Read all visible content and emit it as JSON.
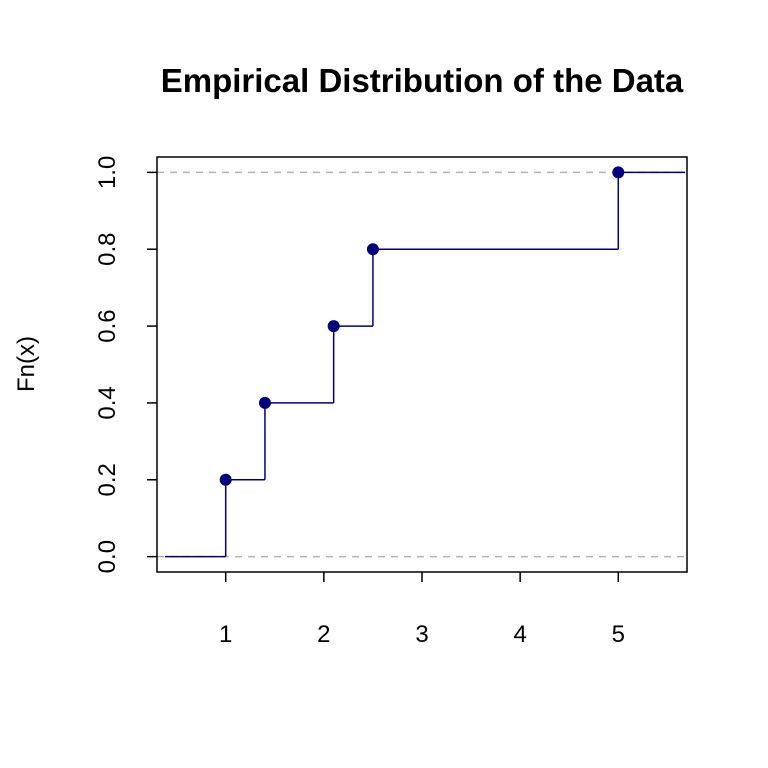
{
  "chart_data": {
    "type": "line",
    "title": "Empirical Distribution of the Data",
    "xlabel": "",
    "ylabel": "Fn(x)",
    "xlim": [
      0.3,
      5.7
    ],
    "ylim": [
      -0.04,
      1.04
    ],
    "x_ticks": [
      1,
      2,
      3,
      4,
      5
    ],
    "y_ticks": [
      0.0,
      0.2,
      0.4,
      0.6,
      0.8,
      1.0
    ],
    "x_tick_labels": [
      "1",
      "2",
      "3",
      "4",
      "5"
    ],
    "y_tick_labels": [
      "0.0",
      "0.2",
      "0.4",
      "0.6",
      "0.8",
      "1.0"
    ],
    "points": [
      {
        "x": 1.0,
        "y": 0.2
      },
      {
        "x": 1.4,
        "y": 0.4
      },
      {
        "x": 2.1,
        "y": 0.6
      },
      {
        "x": 2.5,
        "y": 0.8
      },
      {
        "x": 5.0,
        "y": 1.0
      }
    ],
    "reference_lines": [
      0.0,
      1.0
    ],
    "colors": {
      "step": "#00007f",
      "reference": "#b3b3b3",
      "axis": "#000000"
    },
    "grid": false
  }
}
